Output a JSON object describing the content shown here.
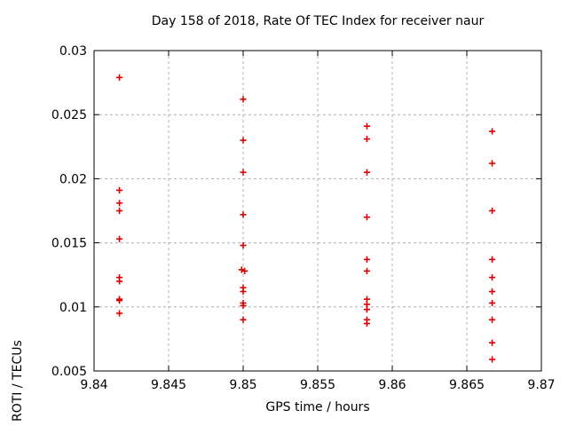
{
  "chart_data": {
    "type": "scatter",
    "title": "Day 158 of 2018, Rate Of TEC Index for receiver naur",
    "xlabel": "GPS time / hours",
    "ylabel": "ROTI / TECUs",
    "xlim": [
      9.84,
      9.87
    ],
    "ylim": [
      0.005,
      0.03
    ],
    "xticks": [
      9.84,
      9.845,
      9.85,
      9.855,
      9.86,
      9.865,
      9.87
    ],
    "xtick_labels": [
      "9.84",
      "9.845",
      "9.85",
      "9.855",
      "9.86",
      "9.865",
      "9.87"
    ],
    "yticks": [
      0.005,
      0.01,
      0.015,
      0.02,
      0.025,
      0.03
    ],
    "ytick_labels": [
      "0.005",
      "0.01",
      "0.015",
      "0.02",
      "0.025",
      "0.03"
    ],
    "grid": true,
    "legend": "none",
    "marker": "plus",
    "marker_color": "#dd0000",
    "grid_color": "#b0b0b0",
    "frame_color": "#000000",
    "background_color": "#ffffff",
    "series": [
      {
        "name": "ROTI",
        "points": [
          [
            9.8417,
            0.0279
          ],
          [
            9.8417,
            0.0191
          ],
          [
            9.8417,
            0.0181
          ],
          [
            9.8417,
            0.0175
          ],
          [
            9.8417,
            0.0153
          ],
          [
            9.8417,
            0.0123
          ],
          [
            9.8417,
            0.012
          ],
          [
            9.8417,
            0.0106
          ],
          [
            9.8417,
            0.0105
          ],
          [
            9.8417,
            0.0095
          ],
          [
            9.85,
            0.0262
          ],
          [
            9.85,
            0.023
          ],
          [
            9.85,
            0.0205
          ],
          [
            9.85,
            0.0172
          ],
          [
            9.85,
            0.0148
          ],
          [
            9.8499,
            0.0129
          ],
          [
            9.8501,
            0.0128
          ],
          [
            9.85,
            0.0115
          ],
          [
            9.85,
            0.0112
          ],
          [
            9.85,
            0.0103
          ],
          [
            9.85,
            0.0101
          ],
          [
            9.85,
            0.009
          ],
          [
            9.8583,
            0.0241
          ],
          [
            9.8583,
            0.0231
          ],
          [
            9.8583,
            0.0205
          ],
          [
            9.8583,
            0.017
          ],
          [
            9.8583,
            0.0137
          ],
          [
            9.8583,
            0.0128
          ],
          [
            9.8583,
            0.0106
          ],
          [
            9.8583,
            0.0102
          ],
          [
            9.8583,
            0.0098
          ],
          [
            9.8583,
            0.009
          ],
          [
            9.8583,
            0.0087
          ],
          [
            9.8667,
            0.0237
          ],
          [
            9.8667,
            0.0212
          ],
          [
            9.8667,
            0.0175
          ],
          [
            9.8667,
            0.0137
          ],
          [
            9.8667,
            0.0123
          ],
          [
            9.8667,
            0.0112
          ],
          [
            9.8667,
            0.0103
          ],
          [
            9.8667,
            0.009
          ],
          [
            9.8667,
            0.0072
          ],
          [
            9.8667,
            0.0059
          ]
        ]
      }
    ]
  }
}
